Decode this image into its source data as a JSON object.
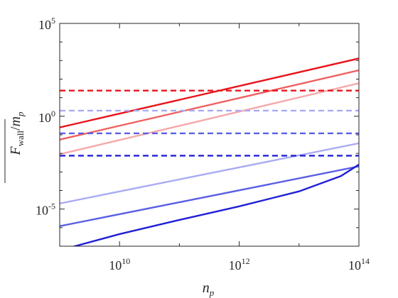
{
  "chart_data": {
    "type": "line",
    "title": "",
    "xlabel": "n_p",
    "ylabel": "F_wall / m_p",
    "x_scale": "log",
    "y_scale": "log",
    "xlim": [
      1000000000.0,
      100000000000000.0
    ],
    "ylim": [
      1e-07,
      100000.0
    ],
    "grid": false,
    "legend": "none",
    "x_ticks": [
      {
        "base": "10",
        "exp": "10",
        "value": 10000000000.0
      },
      {
        "base": "10",
        "exp": "12",
        "value": 1000000000000.0
      },
      {
        "base": "10",
        "exp": "14",
        "value": 100000000000000.0
      }
    ],
    "y_ticks": [
      {
        "base": "10",
        "exp": "5",
        "value": 100000.0
      },
      {
        "base": "10",
        "exp": "0",
        "value": 1
      },
      {
        "base": "10",
        "exp": "-5",
        "value": 1e-05
      }
    ],
    "series": [
      {
        "style": "solid",
        "color": "#e8141b",
        "x": [
          1000000000.0,
          100000000000000.0
        ],
        "y": [
          0.25,
          1300
        ]
      },
      {
        "style": "solid",
        "color": "#ef5f60",
        "x": [
          1000000000.0,
          100000000000000.0
        ],
        "y": [
          0.055,
          300
        ]
      },
      {
        "style": "solid",
        "color": "#f5a9aa",
        "x": [
          1000000000.0,
          100000000000000.0
        ],
        "y": [
          0.009,
          60
        ]
      },
      {
        "style": "solid",
        "color": "#a9acf2",
        "x": [
          1000000000.0,
          100000000000000.0
        ],
        "y": [
          2e-05,
          0.035
        ]
      },
      {
        "style": "solid",
        "color": "#5a5fe4",
        "x": [
          1000000000.0,
          100000000000000.0
        ],
        "y": [
          1.2e-06,
          0.002
        ]
      },
      {
        "style": "solid",
        "color": "#1f1fd8",
        "x": [
          1000000000.0,
          10000000000.0,
          100000000000.0,
          1000000000000.0,
          10000000000000.0,
          50000000000000.0,
          100000000000000.0
        ],
        "y": [
          6e-08,
          4.5e-07,
          2.6e-06,
          1.4e-05,
          9e-05,
          0.0006,
          0.0025
        ]
      },
      {
        "style": "dashed",
        "color": "#e8141b",
        "x": [
          1000000000.0,
          100000000000000.0
        ],
        "y": [
          24,
          24
        ]
      },
      {
        "style": "dashed",
        "color": "#a9acf2",
        "x": [
          1000000000.0,
          100000000000000.0
        ],
        "y": [
          2.0,
          2.0
        ]
      },
      {
        "style": "dashed",
        "color": "#5a5fe4",
        "x": [
          1000000000.0,
          100000000000000.0
        ],
        "y": [
          0.12,
          0.12
        ]
      },
      {
        "style": "dashed",
        "color": "#1f1fd8",
        "x": [
          1000000000.0,
          100000000000000.0
        ],
        "y": [
          0.0075,
          0.0075
        ]
      }
    ]
  }
}
